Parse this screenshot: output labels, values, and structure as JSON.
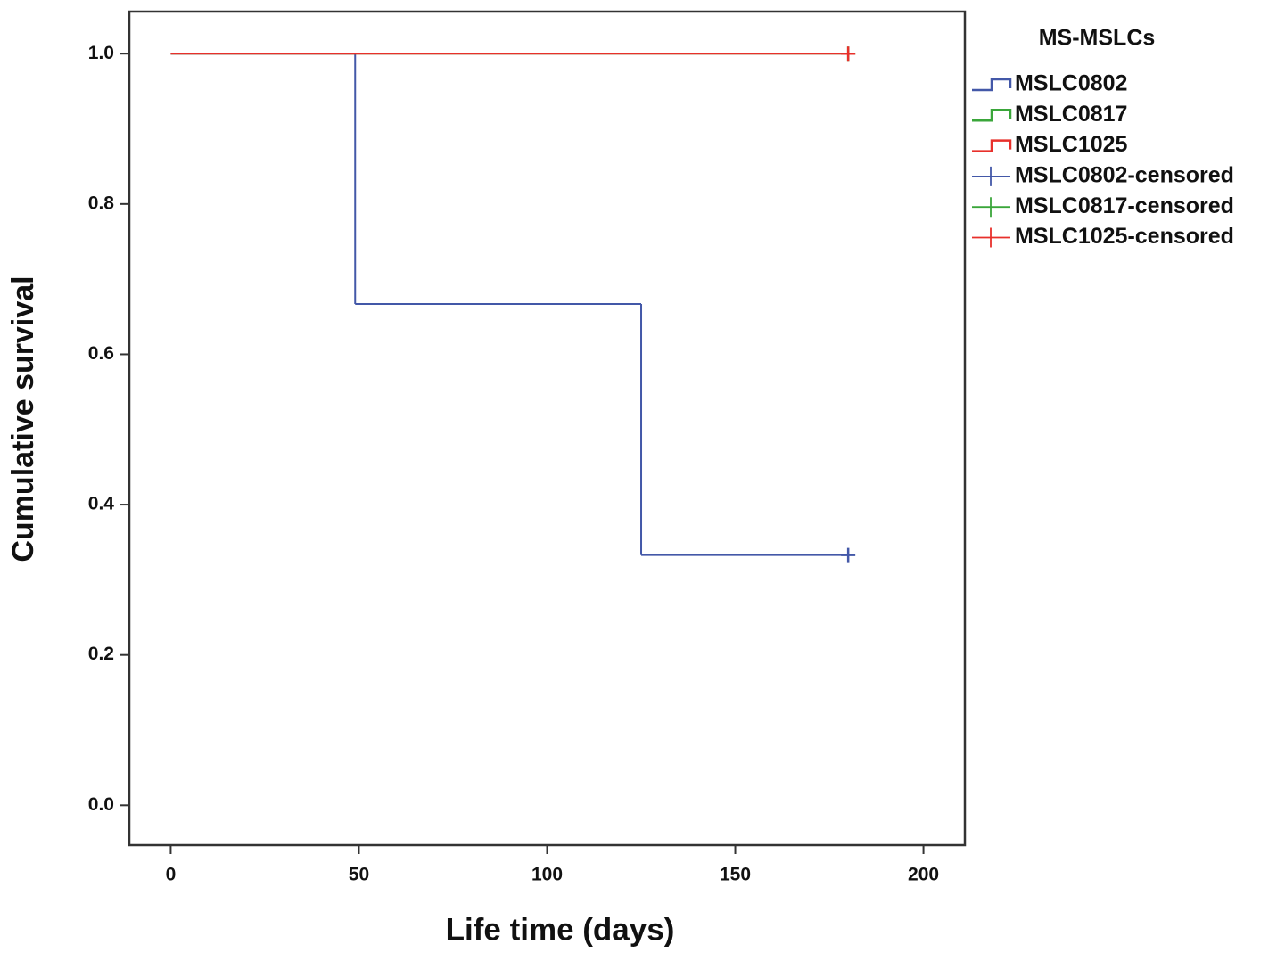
{
  "chart_data": {
    "type": "step",
    "y_label": "Cumulative survival",
    "x_label": "Life time (days)",
    "legend_title": "MS-MSLCs",
    "xlim": [
      -11,
      211
    ],
    "xticks": [
      0,
      50,
      100,
      150,
      200
    ],
    "ylim": [
      -0.053,
      1.056
    ],
    "yticks": [
      {
        "value": 0,
        "label": "0.0"
      },
      0.2,
      0.4,
      0.6,
      0.8,
      {
        "value": 1,
        "label": "1.0"
      }
    ],
    "legend": "right",
    "series": [
      {
        "name": "MSLC0802",
        "color": "#4358a8",
        "x": [
          0,
          49,
          125,
          180
        ],
        "values": [
          1,
          0.667,
          0.333,
          0.333
        ]
      },
      {
        "name": "MSLC0817",
        "color": "#3aa63a",
        "x": [
          0,
          180
        ],
        "values": [
          1,
          1
        ]
      },
      {
        "name": "MSLC1025",
        "color": "#e8302b",
        "x": [
          0,
          180
        ],
        "values": [
          1,
          1
        ]
      }
    ],
    "censored": [
      {
        "name": "MSLC0802-censored",
        "color": "#4358a8",
        "x": [
          180
        ],
        "values": [
          0.333
        ]
      },
      {
        "name": "MSLC0817-censored",
        "color": "#3aa63a",
        "x": [
          180
        ],
        "values": [
          1
        ]
      },
      {
        "name": "MSLC1025-censored",
        "color": "#e8302b",
        "x": [
          180
        ],
        "values": [
          1
        ]
      }
    ]
  }
}
